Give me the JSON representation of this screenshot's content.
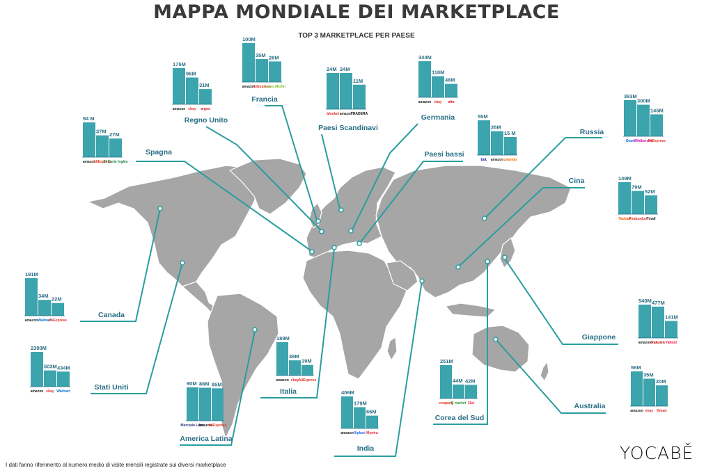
{
  "title": "MAPPA MONDIALE DEI MARKETPLACE",
  "subtitle": "TOP 3 MARKETPLACE PER PAESE",
  "footnote": "I dati fanno riferimento al numero medio di visite mensili registrate sui diversi marketplace",
  "logo": "YOCABĚ",
  "colors": {
    "bar": "#3ba4ad",
    "label": "#2a6f86",
    "line": "#2a9d9f",
    "land": "#a6a6a6"
  },
  "chart_data": [
    {
      "type": "bar",
      "country": "Regno Unito",
      "categories": [
        "amazon",
        "ebay",
        "argos"
      ],
      "labels": [
        "175M",
        "96M",
        "31M"
      ],
      "values": [
        175,
        96,
        31
      ]
    },
    {
      "type": "bar",
      "country": "Francia",
      "categories": [
        "amazon",
        "AliExpress",
        "Leroy Merlin"
      ],
      "labels": [
        "100M",
        "35M",
        "28M"
      ],
      "values": [
        100,
        35,
        28
      ]
    },
    {
      "type": "bar",
      "country": "Paesi Scandinavi",
      "categories": [
        "blocket",
        "amazon",
        "TRADERA"
      ],
      "labels": [
        "24M",
        "24M",
        "11M"
      ],
      "values": [
        24,
        24,
        11
      ]
    },
    {
      "type": "bar",
      "country": "Germania",
      "categories": [
        "amazon",
        "ebay",
        "otto"
      ],
      "labels": [
        "344M",
        "118M",
        "48M"
      ],
      "values": [
        344,
        118,
        48
      ]
    },
    {
      "type": "bar",
      "country": "Spagna",
      "categories": [
        "amazon",
        "AliExpress",
        "El Corte Inglés"
      ],
      "labels": [
        "94 M",
        "37M",
        "27M"
      ],
      "values": [
        94,
        37,
        27
      ]
    },
    {
      "type": "bar",
      "country": "Paesi bassi",
      "categories": [
        "bol.",
        "amazon",
        "zalando"
      ],
      "labels": [
        "55M",
        "26M",
        "15 M"
      ],
      "values": [
        55,
        26,
        15
      ]
    },
    {
      "type": "bar",
      "country": "Russia",
      "categories": [
        "Ozon",
        "Wildberries",
        "AliExpress"
      ],
      "labels": [
        "393M",
        "300M",
        "145M"
      ],
      "values": [
        393,
        300,
        145
      ]
    },
    {
      "type": "bar",
      "country": "Cina",
      "categories": [
        "Taobao",
        "Pinduoduo",
        "Tmall"
      ],
      "labels": [
        "149M",
        "79M",
        "52M"
      ],
      "values": [
        149,
        79,
        52
      ]
    },
    {
      "type": "bar",
      "country": "Canada",
      "categories": [
        "amazon",
        "Walmart",
        "AliExpress"
      ],
      "labels": [
        "191M",
        "34M",
        "22M"
      ],
      "values": [
        191,
        34,
        22
      ]
    },
    {
      "type": "bar",
      "country": "Stati Uniti",
      "categories": [
        "amazon",
        "ebay",
        "Walmart"
      ],
      "labels": [
        "2300M",
        "503M",
        "434M"
      ],
      "values": [
        2300,
        503,
        434
      ]
    },
    {
      "type": "bar",
      "country": "Giappone",
      "categories": [
        "amazon",
        "Rakuten",
        "Yahoo!"
      ],
      "labels": [
        "540M",
        "477M",
        "141M"
      ],
      "values": [
        540,
        477,
        141
      ]
    },
    {
      "type": "bar",
      "country": "Italia",
      "categories": [
        "amazon",
        "ebay",
        "AliExpress"
      ],
      "labels": [
        "188M",
        "39M",
        "19M"
      ],
      "values": [
        188,
        39,
        19
      ]
    },
    {
      "type": "bar",
      "country": "America Latina",
      "categories": [
        "Mercado Libre",
        "amazon",
        "AliExpress"
      ],
      "labels": [
        "90M",
        "88M",
        "85M"
      ],
      "values": [
        90,
        88,
        85
      ]
    },
    {
      "type": "bar",
      "country": "Corea del Sud",
      "categories": [
        "coupang",
        "G market",
        "11st"
      ],
      "labels": [
        "251M",
        "44M",
        "42M"
      ],
      "values": [
        251,
        44,
        42
      ]
    },
    {
      "type": "bar",
      "country": "India",
      "categories": [
        "amazon",
        "flipkart",
        "Myntra"
      ],
      "labels": [
        "406M",
        "179M",
        "65M"
      ],
      "values": [
        406,
        179,
        65
      ]
    },
    {
      "type": "bar",
      "country": "Australia",
      "categories": [
        "amazon",
        "ebay",
        "Kmart"
      ],
      "labels": [
        "56M",
        "35M",
        "20M"
      ],
      "values": [
        56,
        35,
        20
      ]
    }
  ]
}
